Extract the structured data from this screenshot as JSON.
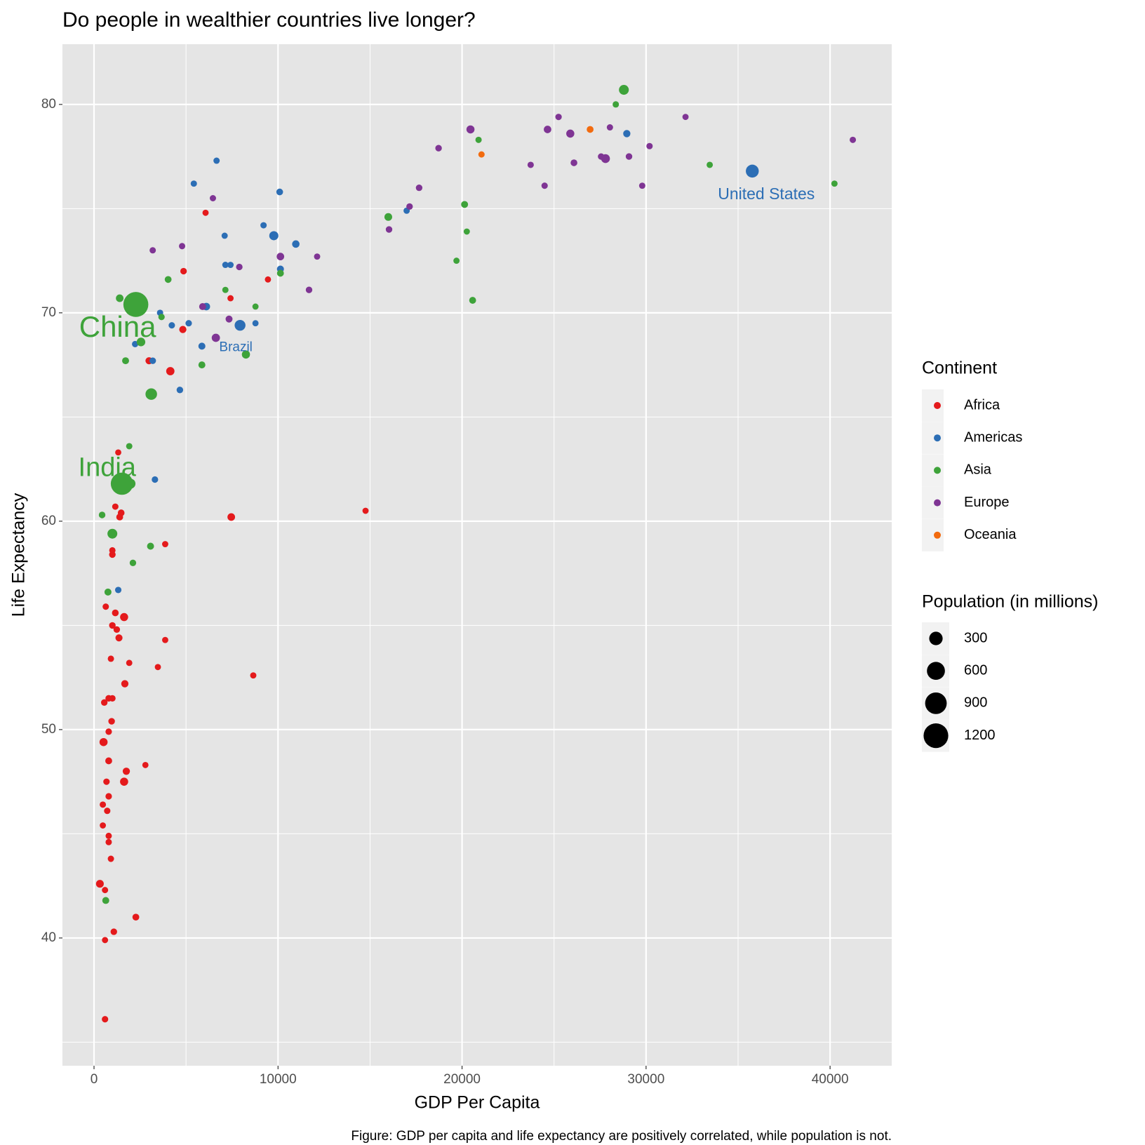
{
  "chart_data": {
    "type": "scatter",
    "title": "Do people in wealthier countries live longer?",
    "x_label": "GDP Per Capita",
    "y_label": "Life Expectancy",
    "caption": "Figure: GDP per capita and life expectancy are positively correlated, while population is not.",
    "xlim": [
      -1716,
      43350
    ],
    "ylim": [
      33.87,
      82.89
    ],
    "xticks": [
      0,
      10000,
      20000,
      30000,
      40000
    ],
    "yticks": [
      40,
      50,
      60,
      70,
      80
    ],
    "grid": true,
    "minor_grid": true,
    "legend_title": "Continent",
    "size_legend": {
      "title": "Population (in millions)",
      "breaks": [
        300,
        600,
        900,
        1200
      ]
    },
    "series": [
      {
        "name": "Africa",
        "color": "#E41A1C",
        "x": [
          6062,
          4866,
          9452,
          7418,
          4826,
          4147,
          2991,
          14756,
          7458,
          1316,
          1157,
          1475,
          1396,
          3868,
          997,
          997,
          638,
          1157,
          1635,
          997,
          1236,
          1356,
          3868,
          917,
          1914,
          3470,
          8654,
          1675,
          997,
          798,
          558,
          957,
          798,
          518,
          798,
          1755,
          2792,
          678,
          1635,
          798,
          479,
          718,
          479,
          798,
          798,
          917,
          319,
          598,
          2273,
          1077,
          598,
          598
        ],
        "values": [
          74.8,
          72.0,
          71.6,
          70.7,
          69.2,
          67.2,
          67.7,
          60.5,
          60.2,
          63.3,
          60.7,
          60.4,
          60.2,
          58.9,
          58.6,
          58.4,
          55.9,
          55.6,
          55.4,
          55.0,
          54.8,
          54.4,
          54.3,
          53.4,
          53.2,
          53.0,
          52.6,
          52.2,
          51.5,
          51.5,
          51.3,
          50.4,
          49.9,
          49.4,
          48.5,
          48.0,
          48.3,
          47.5,
          47.5,
          46.8,
          46.4,
          46.1,
          45.4,
          44.9,
          44.6,
          43.8,
          42.6,
          42.3,
          41.0,
          40.3,
          39.9,
          36.1
        ],
        "sizes": [
          1,
          9,
          1,
          1,
          29,
          64,
          28,
          1,
          42,
          0.1,
          4,
          16,
          18,
          2,
          5,
          12,
          5,
          15,
          57,
          11,
          10,
          25,
          1,
          4,
          2,
          1,
          2,
          30,
          9,
          12,
          10,
          11,
          8,
          58,
          20,
          30,
          1,
          7,
          59,
          8,
          4,
          6,
          1,
          4,
          4,
          4,
          47,
          2,
          18,
          10,
          1,
          7
        ]
      },
      {
        "name": "Americas",
        "color": "#2C6EB5",
        "x": [
          35773,
          28953,
          16989,
          6660,
          5424,
          10090,
          9213,
          9771,
          7099,
          10967,
          10130,
          7139,
          7418,
          6102,
          5145,
          3589,
          4227,
          7936,
          8774,
          2233,
          5862,
          3190,
          4666,
          3310,
          1316
        ],
        "values": [
          76.8,
          78.6,
          74.9,
          77.3,
          76.2,
          75.8,
          74.2,
          73.7,
          73.7,
          73.3,
          72.1,
          72.3,
          72.3,
          70.3,
          69.5,
          70.0,
          69.4,
          69.4,
          69.5,
          68.5,
          68.4,
          67.7,
          66.3,
          62.0,
          56.7
        ],
        "sizes": [
          272,
          30,
          3,
          4,
          3,
          15,
          4,
          95,
          1,
          36,
          23,
          4,
          3,
          40,
          7,
          4,
          6,
          168,
          1,
          5,
          24,
          11,
          11,
          8,
          7
        ]
      },
      {
        "name": "Asia",
        "color": "#3EA33A",
        "x": [
          28794,
          28355,
          20897,
          33460,
          40239,
          20138,
          15992,
          20258,
          19697,
          20575,
          10130,
          7139,
          8774,
          4028,
          1396,
          2273,
          3669,
          2552,
          1715,
          5862,
          8255,
          3111,
          1914,
          1515,
          1977,
          439,
          997,
          3071,
          2114,
          758,
          638
        ],
        "values": [
          80.7,
          80.0,
          78.3,
          77.1,
          76.2,
          75.2,
          74.6,
          73.9,
          72.5,
          70.6,
          71.9,
          71.1,
          70.3,
          71.6,
          70.7,
          70.4,
          69.8,
          68.6,
          67.7,
          67.5,
          68.0,
          66.1,
          63.6,
          61.8,
          61.8,
          60.3,
          59.4,
          58.8,
          58.0,
          56.6,
          41.8
        ],
        "sizes": [
          125,
          6,
          4,
          3,
          2,
          21,
          46,
          1,
          1,
          20,
          20,
          2,
          1,
          18,
          41,
          1230,
          6,
          76,
          22,
          22,
          60,
          200,
          4,
          959,
          136,
          12,
          123,
          23,
          10,
          24,
          22
        ]
      },
      {
        "name": "Europe",
        "color": "#7F3594",
        "x": [
          20458,
          25244,
          24646,
          25882,
          28036,
          32144,
          41236,
          18724,
          23729,
          26082,
          27557,
          27796,
          29073,
          30189,
          24487,
          29791,
          17667,
          17148,
          6461,
          16032,
          4786,
          3190,
          10130,
          12124,
          7896,
          11685,
          7338,
          6620,
          5902
        ],
        "values": [
          78.8,
          79.4,
          78.8,
          78.6,
          78.9,
          79.4,
          78.3,
          77.9,
          77.1,
          77.2,
          77.5,
          77.4,
          77.5,
          78.0,
          76.1,
          76.1,
          76.0,
          75.1,
          75.5,
          74.0,
          73.2,
          73.0,
          72.7,
          72.7,
          72.2,
          71.1,
          69.7,
          68.8,
          70.3
        ],
        "sizes": [
          57,
          7,
          39,
          58,
          4,
          1,
          4,
          10,
          5,
          16,
          8,
          82,
          10,
          5,
          5,
          3,
          10,
          10,
          4,
          10,
          4,
          4,
          39,
          2,
          9,
          10,
          22,
          63,
          22
        ]
      },
      {
        "name": "Oceania",
        "color": "#F26B0F",
        "x": [
          26960,
          21057
        ],
        "values": [
          78.8,
          77.6
        ],
        "sizes": [
          18,
          4
        ]
      }
    ],
    "annotations": [
      "United States",
      "Brazil",
      "China",
      "India"
    ]
  }
}
